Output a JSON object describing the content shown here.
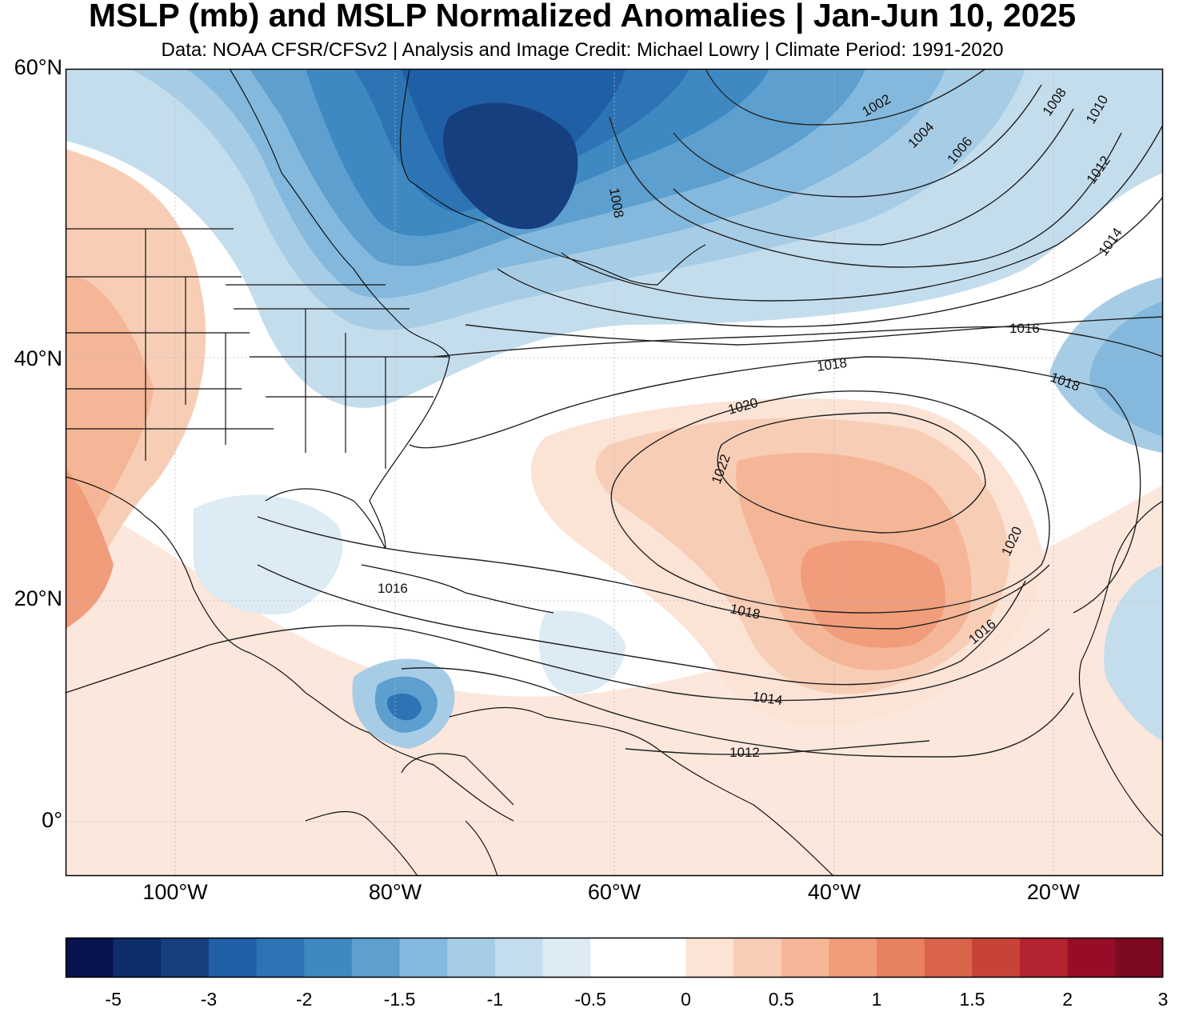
{
  "title": "MSLP (mb) and MSLP Normalized Anomalies | Jan-Jun 10, 2025",
  "subtitle": "Data: NOAA CFSR/CFSv2 | Analysis and Image Credit: Michael Lowry | Climate Period: 1991-2020",
  "lat_labels": [
    "60°N",
    "40°N",
    "20°N",
    "0°"
  ],
  "lon_labels": [
    "100°W",
    "80°W",
    "60°W",
    "40°W",
    "20°W"
  ],
  "contour_labels": [
    "1002",
    "1004",
    "1006",
    "1008",
    "1010",
    "1012",
    "1014",
    "1016",
    "1018",
    "1020",
    "1022"
  ],
  "colorbar": {
    "tick_labels": [
      "-5",
      "-3",
      "-2",
      "-1.5",
      "-1",
      "-0.5",
      "0",
      "0.5",
      "1",
      "1.5",
      "2",
      "3"
    ],
    "colors": [
      "#08134f",
      "#0d2d6b",
      "#163f7f",
      "#1f5fa6",
      "#2d74b5",
      "#3f89c2",
      "#5d9fcf",
      "#84b9dd",
      "#a7cde6",
      "#c4dded",
      "#dcebf4",
      "#ffffff",
      "#ffffff",
      "#fbe3d6",
      "#f8cdb6",
      "#f5b697",
      "#f19c7a",
      "#e8815f",
      "#d9644b",
      "#c74237",
      "#b32330",
      "#970d27",
      "#7d0a21"
    ]
  }
}
